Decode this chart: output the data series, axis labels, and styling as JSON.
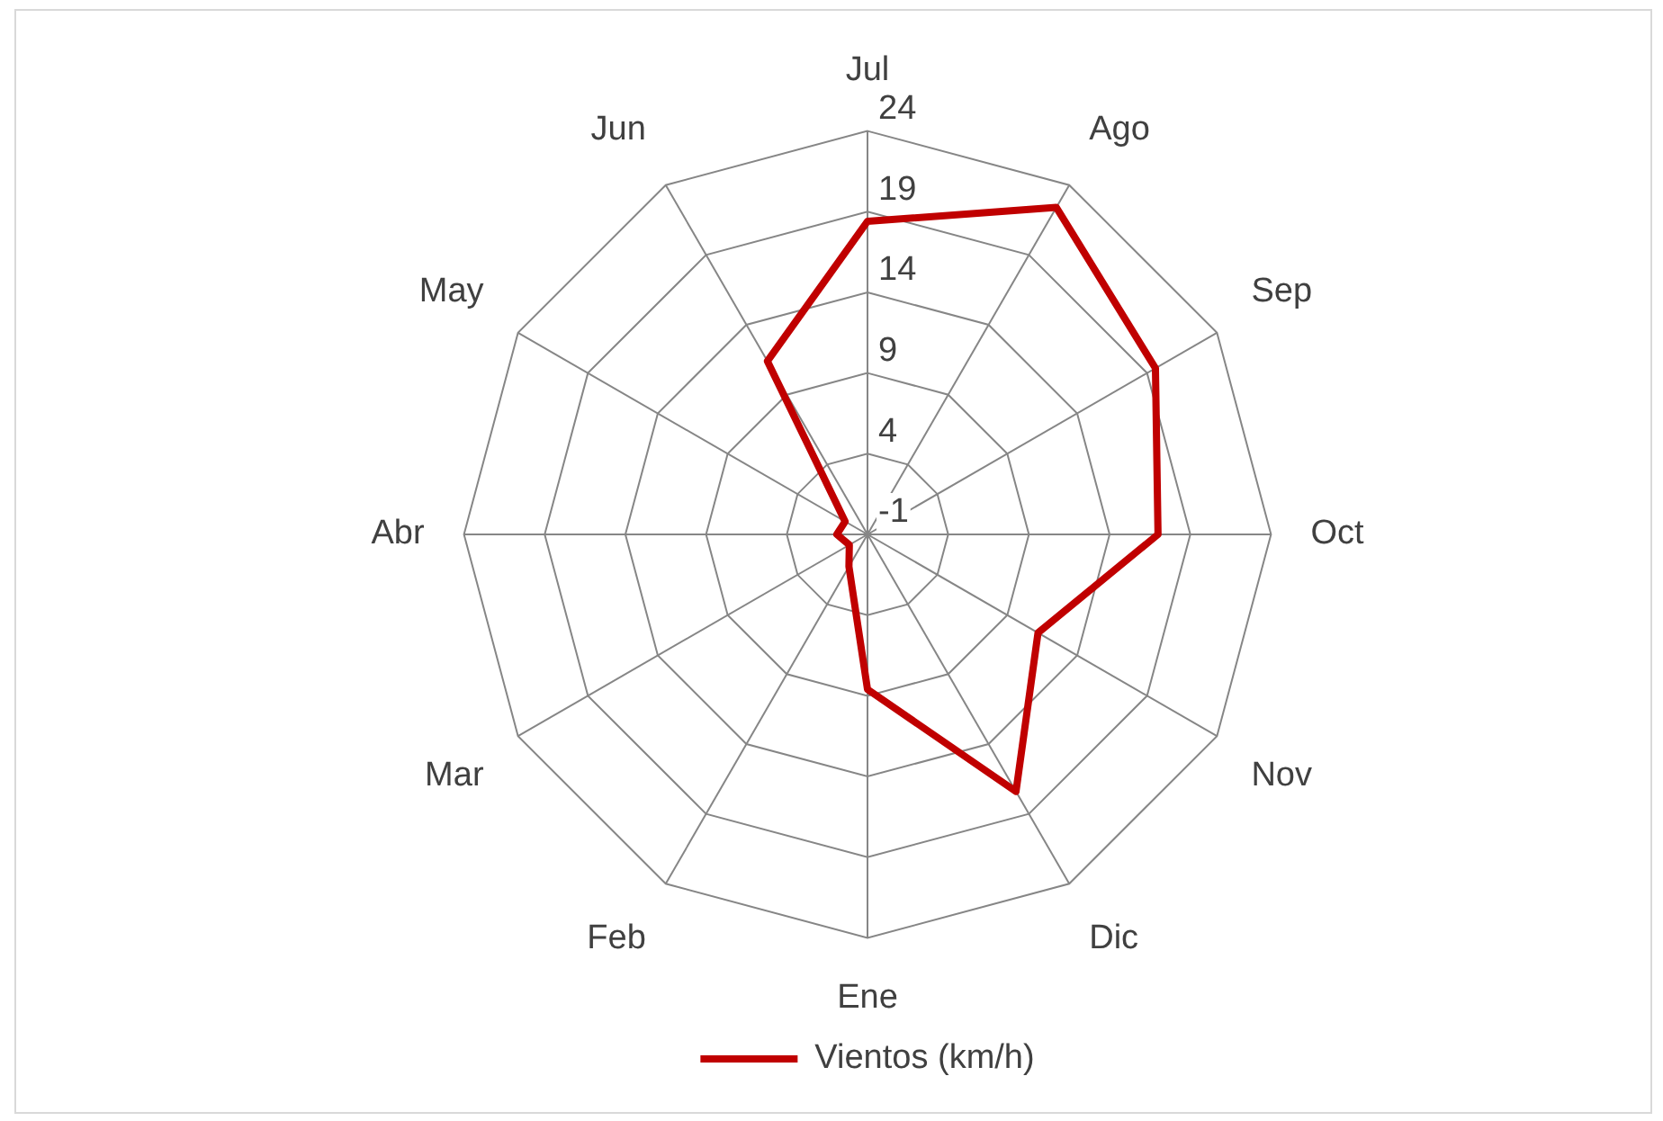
{
  "chart_data": {
    "type": "radar",
    "categories": [
      "Jul",
      "Ago",
      "Sep",
      "Oct",
      "Nov",
      "Dic",
      "Ene",
      "Feb",
      "Mar",
      "Abr",
      "May",
      "Jun"
    ],
    "series": [
      {
        "name": "Vientos (km/h)",
        "color": "#c00000",
        "values": [
          18.4,
          22.4,
          19.6,
          17.0,
          11.2,
          17.4,
          8.6,
          1.3,
          0.3,
          0.9,
          0.6,
          11.4
        ]
      }
    ],
    "ylim": [
      -1,
      24
    ],
    "yticks": [
      -1,
      4,
      9,
      14,
      19,
      24
    ],
    "grid": true,
    "legend": "bottom",
    "marker": "none",
    "line_style": "solid"
  }
}
